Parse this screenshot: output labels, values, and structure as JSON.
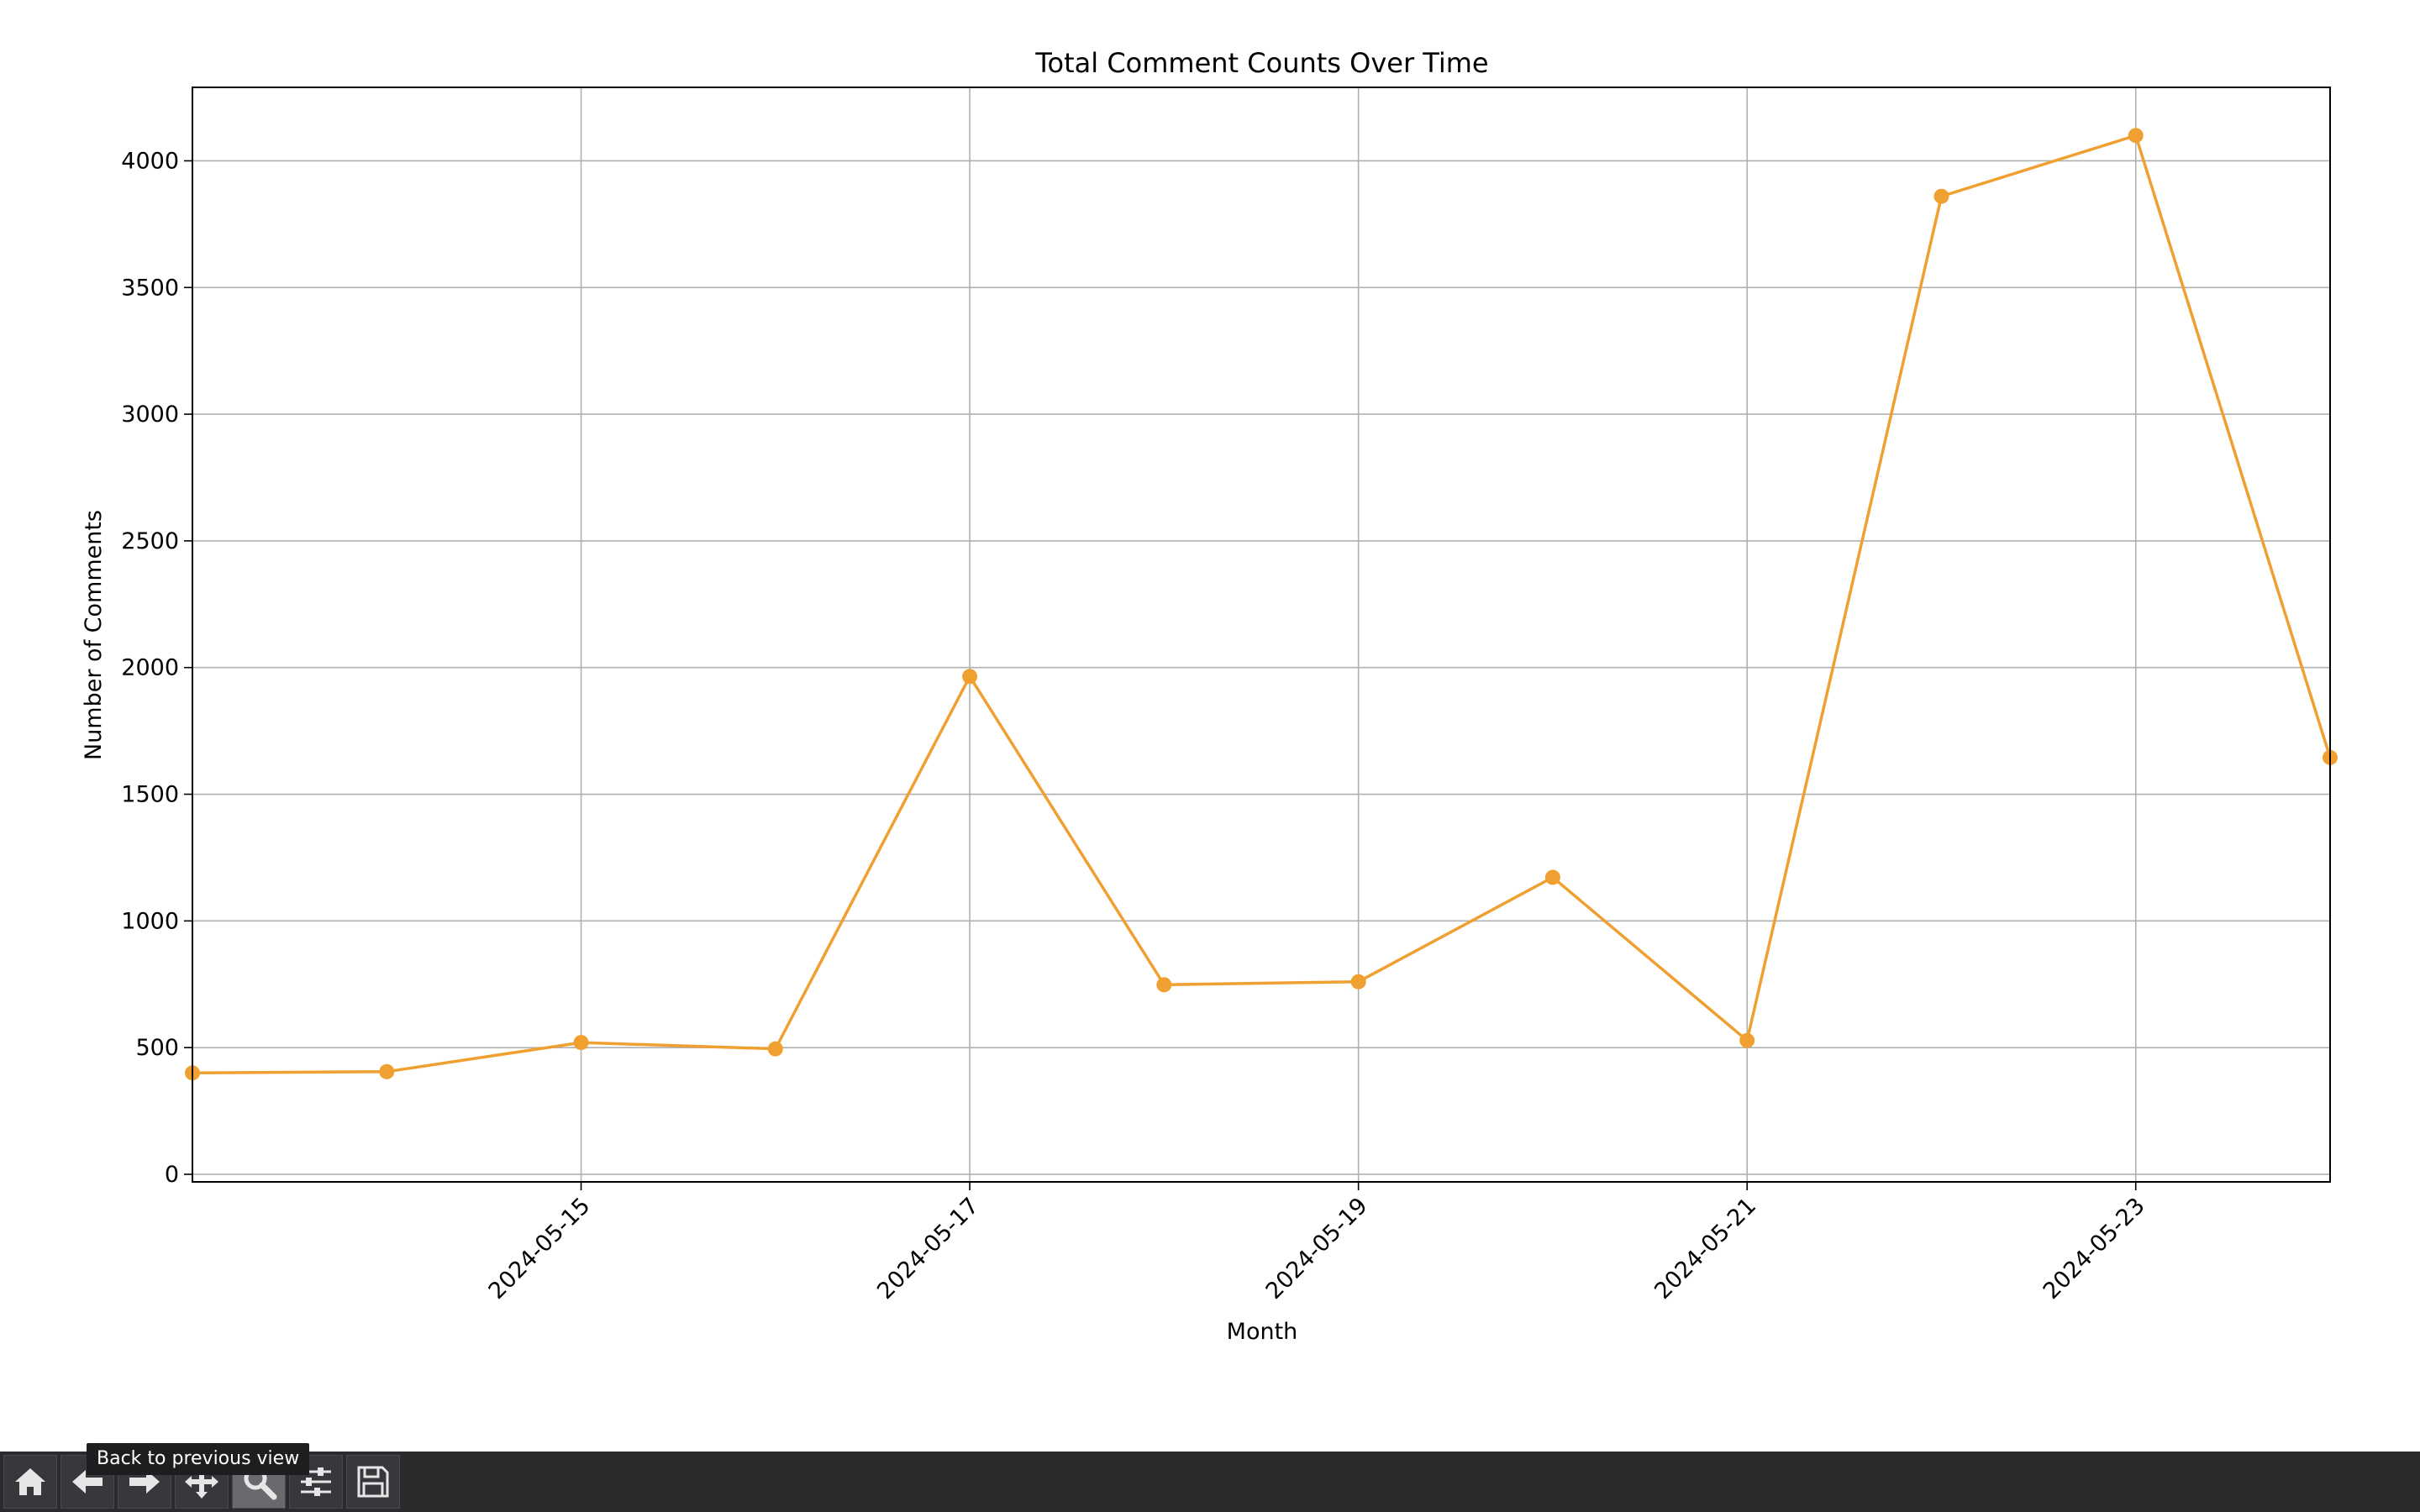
{
  "chart_data": {
    "type": "line",
    "title": "Total Comment Counts Over Time",
    "xlabel": "Month",
    "ylabel": "Number of Comments",
    "x": [
      "2024-05-13",
      "2024-05-14",
      "2024-05-15",
      "2024-05-16",
      "2024-05-17",
      "2024-05-18",
      "2024-05-19",
      "2024-05-20",
      "2024-05-21",
      "2024-05-22",
      "2024-05-23",
      "2024-05-24"
    ],
    "series": [
      {
        "values": [
          400,
          405,
          520,
          495,
          1965,
          748,
          760,
          1172,
          528,
          3860,
          4100,
          1645
        ]
      }
    ],
    "xticks": [
      "2024-05-15",
      "2024-05-17",
      "2024-05-19",
      "2024-05-21",
      "2024-05-23"
    ],
    "yticks": [
      0,
      500,
      1000,
      1500,
      2000,
      2500,
      3000,
      3500,
      4000
    ],
    "xlim": [
      "2024-05-13",
      "2024-05-24"
    ],
    "ylim": [
      -30,
      4290
    ],
    "grid": true,
    "color": "#f0a030"
  },
  "toolbar": {
    "buttons": [
      {
        "name": "home-button",
        "icon": "home-icon"
      },
      {
        "name": "back-button",
        "icon": "arrow-left-icon"
      },
      {
        "name": "forward-button",
        "icon": "arrow-right-icon"
      },
      {
        "name": "pan-button",
        "icon": "move-icon"
      },
      {
        "name": "zoom-button",
        "icon": "magnifier-icon",
        "active": true
      },
      {
        "name": "configure-subplots-button",
        "icon": "sliders-icon"
      },
      {
        "name": "save-button",
        "icon": "floppy-disk-icon"
      }
    ],
    "tooltip": "Back to previous view"
  }
}
